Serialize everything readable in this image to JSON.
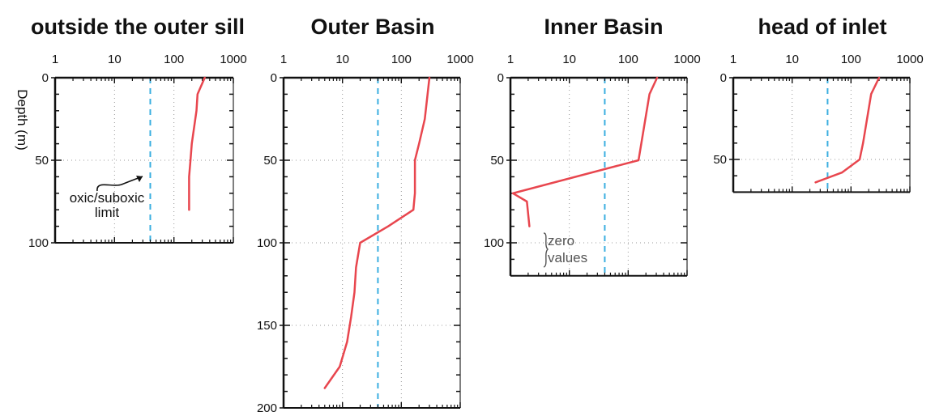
{
  "figure": {
    "ylabel": "Depth (m)",
    "colors": {
      "profile": "#e8464e",
      "limit": "#3aaee0",
      "axis": "#111111",
      "grid": "#9a9a9a"
    }
  },
  "chart_data": [
    {
      "type": "line",
      "title": "outside the outer sill",
      "x_scale": "log",
      "xlim": [
        1,
        1000
      ],
      "x_ticks": [
        "1",
        "10",
        "100",
        "1000"
      ],
      "ylim": [
        0,
        100
      ],
      "y_ticks": [
        "0",
        "50",
        "100"
      ],
      "oxic_suboxic_limit": 40,
      "series": [
        {
          "x": [
            330,
            250,
            240,
            200,
            190,
            180,
            180,
            180
          ],
          "y": [
            0,
            10,
            20,
            40,
            50,
            60,
            70,
            80
          ]
        }
      ],
      "annotation": "oxic/suboxic\nlimit"
    },
    {
      "type": "line",
      "title": "Outer Basin",
      "x_scale": "log",
      "xlim": [
        1,
        1000
      ],
      "x_ticks": [
        "1",
        "10",
        "100",
        "1000"
      ],
      "ylim": [
        0,
        200
      ],
      "y_ticks": [
        "0",
        "50",
        "100",
        "150",
        "200"
      ],
      "oxic_suboxic_limit": 40,
      "series": [
        {
          "x": [
            300,
            250,
            200,
            170,
            170,
            170,
            160,
            60,
            20,
            17,
            16,
            14,
            12,
            9,
            5
          ],
          "y": [
            0,
            25,
            40,
            50,
            60,
            70,
            80,
            90,
            100,
            115,
            130,
            145,
            160,
            175,
            188
          ]
        }
      ]
    },
    {
      "type": "line",
      "title": "Inner Basin",
      "x_scale": "log",
      "xlim": [
        1,
        1000
      ],
      "x_ticks": [
        "1",
        "10",
        "100",
        "1000"
      ],
      "ylim": [
        0,
        120
      ],
      "y_ticks": [
        "0",
        "50",
        "100"
      ],
      "oxic_suboxic_limit": 40,
      "series": [
        {
          "x": [
            310,
            230,
            150,
            1.1,
            1.9,
            2.1
          ],
          "y": [
            0,
            10,
            50,
            70,
            75,
            90
          ]
        }
      ],
      "annotation": "zero\nvalues"
    },
    {
      "type": "line",
      "title": "head of inlet",
      "x_scale": "log",
      "xlim": [
        1,
        1000
      ],
      "x_ticks": [
        "1",
        "10",
        "100",
        "1000"
      ],
      "ylim": [
        0,
        70
      ],
      "y_ticks": [
        "0",
        "50"
      ],
      "oxic_suboxic_limit": 40,
      "series": [
        {
          "x": [
            300,
            220,
            160,
            150,
            140,
            70,
            25
          ],
          "y": [
            0,
            10,
            40,
            45,
            50,
            58,
            64
          ]
        }
      ]
    }
  ]
}
